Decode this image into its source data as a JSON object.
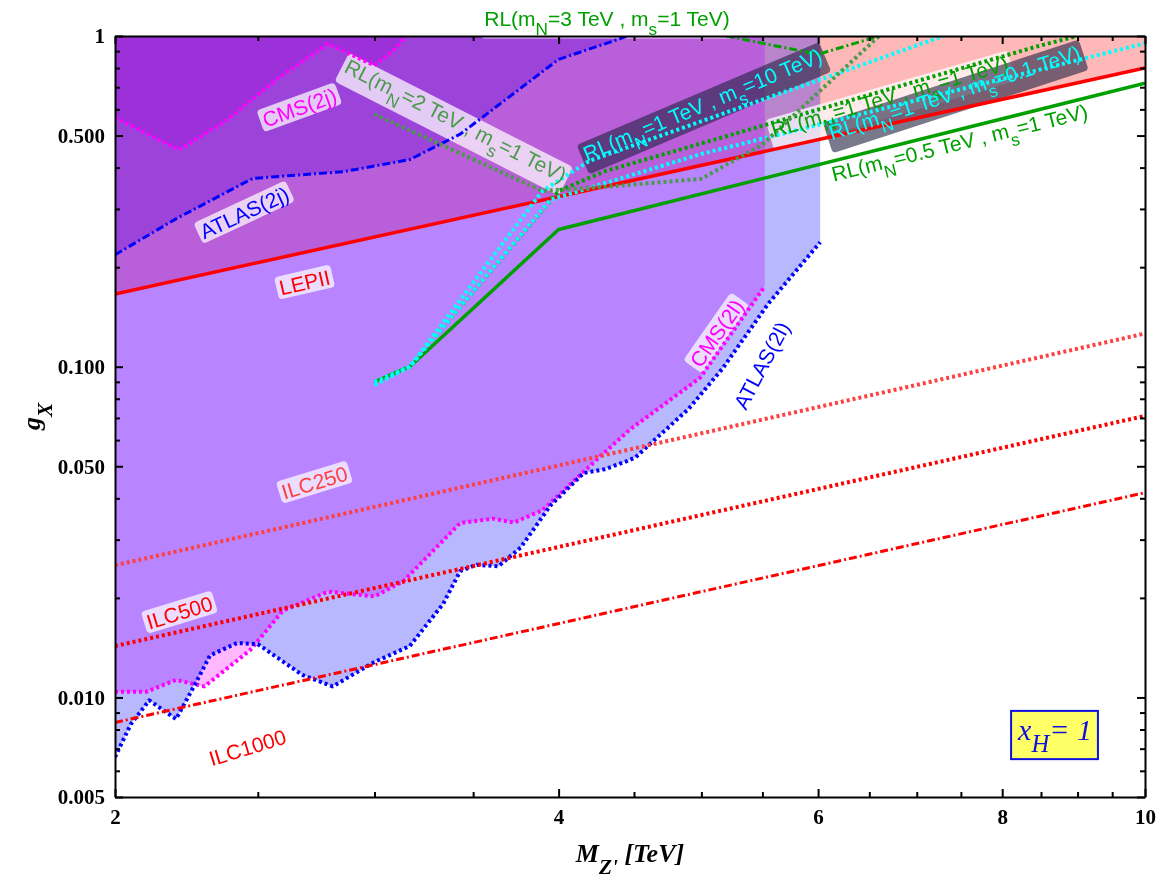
{
  "chart_data": {
    "type": "line",
    "xlabel": "M$_{Z'}$ [TeV]",
    "ylabel": "g$_{X}$",
    "log": "xy",
    "grid": false,
    "xlim": [
      2,
      10
    ],
    "ylim": [
      0.005,
      1
    ],
    "xticks": [
      2,
      {
        "value": 2.5,
        "label": null
      },
      {
        "value": 3,
        "label": null
      },
      {
        "value": 3.5,
        "label": null
      },
      4,
      {
        "value": 4.5,
        "label": null
      },
      {
        "value": 5,
        "label": null
      },
      {
        "value": 5.5,
        "label": null
      },
      6,
      {
        "value": 6.5,
        "label": null
      },
      {
        "value": 7,
        "label": null
      },
      {
        "value": 7.5,
        "label": null
      },
      8,
      {
        "value": 8.5,
        "label": null
      },
      {
        "value": 9,
        "label": null
      },
      {
        "value": 9.5,
        "label": null
      },
      10
    ],
    "yticks": [
      {
        "value": 0.005,
        "label": "0.005"
      },
      {
        "value": 0.006,
        "label": null
      },
      {
        "value": 0.007,
        "label": null
      },
      {
        "value": 0.008,
        "label": null
      },
      {
        "value": 0.009,
        "label": null
      },
      {
        "value": 0.01,
        "label": "0.010"
      },
      {
        "value": 0.02,
        "label": null
      },
      {
        "value": 0.03,
        "label": null
      },
      {
        "value": 0.04,
        "label": null
      },
      {
        "value": 0.05,
        "label": "0.050"
      },
      {
        "value": 0.06,
        "label": null
      },
      {
        "value": 0.07,
        "label": null
      },
      {
        "value": 0.08,
        "label": null
      },
      {
        "value": 0.09,
        "label": null
      },
      {
        "value": 0.1,
        "label": "0.100"
      },
      {
        "value": 0.2,
        "label": null
      },
      {
        "value": 0.3,
        "label": null
      },
      {
        "value": 0.4,
        "label": null
      },
      {
        "value": 0.5,
        "label": "0.500"
      },
      {
        "value": 0.6,
        "label": null
      },
      {
        "value": 0.7,
        "label": null
      },
      {
        "value": 0.8,
        "label": null
      },
      {
        "value": 0.9,
        "label": null
      },
      1
    ],
    "series": [
      {
        "name": "CMS(2j)",
        "color": "#ff00ff",
        "line_style": "dotted",
        "x": [
          2,
          2.21,
          2.38,
          2.58,
          2.79,
          3.0,
          3.1,
          3.15
        ],
        "values": [
          0.567,
          0.453,
          0.555,
          0.745,
          0.947,
          0.815,
          0.915,
          1.0
        ],
        "lower": [
          0.567,
          0.453,
          0.555,
          0.745,
          0.947,
          0.815,
          0.915,
          1.0
        ],
        "upper": [
          1,
          1,
          1,
          1,
          1,
          1,
          1,
          1
        ]
      },
      {
        "name": "ATLAS(2j)",
        "color": "#0000ff",
        "line_style": "dashdot",
        "x": [
          2,
          2.2,
          2.48,
          2.86,
          3.17,
          3.43,
          4.0,
          4.4,
          4.45
        ],
        "values": [
          0.218,
          0.28,
          0.371,
          0.389,
          0.423,
          0.505,
          0.85,
          0.98,
          1.0
        ],
        "lower": [
          0.218,
          0.28,
          0.371,
          0.389,
          0.423,
          0.505,
          0.85,
          0.98,
          1.0
        ],
        "upper": [
          1,
          1,
          1,
          1,
          1,
          1,
          1,
          1,
          1
        ]
      },
      {
        "name": "LEPII",
        "color": "#ff0000",
        "line_style": "solid",
        "x": [
          2,
          10
        ],
        "values": [
          0.166,
          0.8
        ],
        "lower": [
          0.166,
          0.8
        ],
        "upper": [
          1,
          1
        ]
      },
      {
        "name": "CMS(2l)",
        "color": "#ff00ff",
        "line_style": "dotted",
        "x": [
          2,
          2.1,
          2.2,
          2.3,
          2.47,
          2.6,
          2.79,
          3.0,
          3.14,
          3.43,
          3.61,
          3.73,
          3.9,
          4.22,
          4.47,
          4.99,
          5.52
        ],
        "values": [
          0.0104,
          0.0104,
          0.0113,
          0.0108,
          0.0139,
          0.0183,
          0.0209,
          0.0202,
          0.0225,
          0.0337,
          0.0347,
          0.0338,
          0.0368,
          0.0511,
          0.0645,
          0.0926,
          0.175
        ],
        "lower": [
          0.0104,
          0.0104,
          0.0113,
          0.0108,
          0.0139,
          0.0183,
          0.0209,
          0.0202,
          0.0225,
          0.0337,
          0.0347,
          0.0338,
          0.0368,
          0.0511,
          0.0645,
          0.0926,
          0.175
        ],
        "upper": [
          1,
          1,
          1,
          1,
          1,
          1,
          1,
          1,
          1,
          1,
          1,
          1,
          1,
          1,
          1,
          1,
          1
        ]
      },
      {
        "name": "ATLAS(2l)",
        "color": "#0000ff",
        "line_style": "dotted",
        "x": [
          2,
          2.05,
          2.11,
          2.2,
          2.27,
          2.32,
          2.42,
          2.5,
          2.68,
          2.81,
          3.0,
          3.17,
          3.34,
          3.43,
          3.52,
          3.64,
          3.77,
          3.95,
          4.16,
          4.3,
          4.45,
          4.51,
          4.9,
          5.17,
          5.55,
          6.02
        ],
        "values": [
          0.0066,
          0.0083,
          0.0098,
          0.0086,
          0.0111,
          0.0134,
          0.0146,
          0.0145,
          0.0117,
          0.0108,
          0.0128,
          0.0143,
          0.0192,
          0.0241,
          0.0252,
          0.0249,
          0.0284,
          0.0381,
          0.0477,
          0.049,
          0.0518,
          0.0532,
          0.0745,
          0.099,
          0.155,
          0.238
        ],
        "lower": [
          0.0066,
          0.0083,
          0.0098,
          0.0086,
          0.0111,
          0.0134,
          0.0146,
          0.0145,
          0.0117,
          0.0108,
          0.0128,
          0.0143,
          0.0192,
          0.0241,
          0.0252,
          0.0249,
          0.0284,
          0.0381,
          0.0477,
          0.049,
          0.0518,
          0.0532,
          0.0745,
          0.099,
          0.155,
          0.238
        ],
        "upper": [
          1,
          1,
          1,
          1,
          1,
          1,
          1,
          1,
          1,
          1,
          1,
          1,
          1,
          1,
          1,
          1,
          1,
          1,
          1,
          1,
          1,
          1,
          1,
          1,
          1,
          1
        ]
      },
      {
        "name": "ILC250",
        "color": "#ff4040",
        "line_style": "dotted",
        "x": [
          2,
          10
        ],
        "values": [
          0.0251,
          0.126
        ]
      },
      {
        "name": "ILC500",
        "color": "#ff0000",
        "line_style": "dotted",
        "x": [
          2,
          10
        ],
        "values": [
          0.0143,
          0.071
        ]
      },
      {
        "name": "ILC1000",
        "color": "#ff0000",
        "line_style": "dashdot",
        "x": [
          2,
          10
        ],
        "values": [
          0.0084,
          0.0416
        ]
      },
      {
        "name": "RL(m$_{N}$=0.5 TeV , m$_{s}$=1 TeV)",
        "color": "#00a000",
        "line_style": "solid",
        "x": [
          3.0,
          3.17,
          4.0,
          10
        ],
        "values": [
          0.09,
          0.1,
          0.26,
          0.72
        ]
      },
      {
        "name": "RL(m$_{N}$=1 TeV , m$_{s}$=1 TeV)",
        "color": "#00a000",
        "line_style": "dotted",
        "x": [
          3.0,
          3.17,
          4.0,
          4.3,
          8.45,
          9.0
        ],
        "values": [
          0.09,
          0.1,
          0.34,
          0.39,
          0.93,
          1.0
        ]
      },
      {
        "name": "RL(m$_{N}$=1 TeV , m$_{s}$=0.1 TeV)",
        "color": "#00ffff",
        "line_style": "dotted",
        "x": [
          3.0,
          3.17,
          3.95,
          5.0,
          10
        ],
        "values": [
          0.09,
          0.1,
          0.32,
          0.44,
          0.95
        ]
      },
      {
        "name": "RL(m$_{N}$=1 TeV , m$_{s}$=10 TeV)",
        "color": "#00ffff",
        "line_style": "dotted",
        "x": [
          3.0,
          3.17,
          3.9,
          4.2,
          7.3
        ],
        "values": [
          0.088,
          0.1,
          0.34,
          0.42,
          1.0
        ]
      },
      {
        "name": "RL(m$_{N}$=2 TeV , m$_{s}$=1 TeV)",
        "color": "#4a9a4a",
        "line_style": "dotted",
        "x": [
          3.0,
          3.9,
          4.3,
          5.0,
          5.5,
          6.6
        ],
        "values": [
          0.58,
          0.34,
          0.35,
          0.37,
          0.47,
          1.0
        ]
      },
      {
        "name": "RL(m$_{N}$=3 TeV , m$_{s}$=1 TeV)",
        "color": "#00a000",
        "line_style": "dashdot",
        "x": [
          5.2,
          6.0,
          6.6
        ],
        "values": [
          1.0,
          0.88,
          1.0
        ]
      }
    ],
    "annotations": [
      "x$_{H}$= 1"
    ]
  }
}
